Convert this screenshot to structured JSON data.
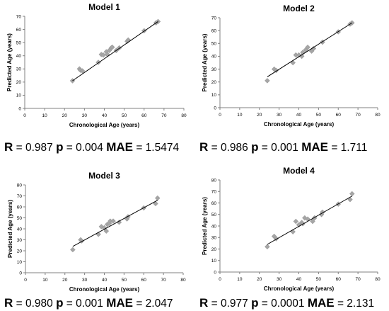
{
  "chart_data": [
    {
      "type": "scatter",
      "title": "Model 1",
      "xlabel": "Chronological Age (years)",
      "ylabel": "Predicted Age (years)",
      "xlim": [
        0,
        80
      ],
      "ylim": [
        0,
        70
      ],
      "xticks": [
        0,
        10,
        20,
        30,
        40,
        50,
        60,
        70,
        80
      ],
      "yticks": [
        0,
        10,
        20,
        30,
        40,
        50,
        60,
        70
      ],
      "grid": false,
      "trendline": [
        [
          24,
          21
        ],
        [
          67,
          66
        ]
      ],
      "points": [
        [
          24,
          21
        ],
        [
          27.5,
          30
        ],
        [
          28,
          29
        ],
        [
          29,
          28.5
        ],
        [
          37,
          35
        ],
        [
          38.5,
          41
        ],
        [
          39.5,
          40.5
        ],
        [
          41,
          43
        ],
        [
          41.5,
          41
        ],
        [
          42.5,
          44
        ],
        [
          43.5,
          46
        ],
        [
          44,
          46.5
        ],
        [
          46,
          44
        ],
        [
          47.5,
          46
        ],
        [
          51.5,
          51
        ],
        [
          52,
          52
        ],
        [
          60,
          59
        ],
        [
          66,
          65
        ],
        [
          67,
          66
        ]
      ],
      "stats": {
        "r_label": "R",
        "r_value": "= 0.987",
        "p_label": "p",
        "p_value": "= 0.004",
        "mae_label": "MAE",
        "mae_value": "= 1.5474"
      }
    },
    {
      "type": "scatter",
      "title": "Model 2",
      "xlabel": "Chronological Age (years)",
      "ylabel": "Predicted Age (years)",
      "xlim": [
        0,
        80
      ],
      "ylim": [
        0,
        70
      ],
      "xticks": [
        0,
        10,
        20,
        30,
        40,
        50,
        60,
        70,
        80
      ],
      "yticks": [
        0,
        10,
        20,
        30,
        40,
        50,
        60,
        70
      ],
      "grid": false,
      "trendline": [
        [
          24,
          24
        ],
        [
          67,
          66
        ]
      ],
      "points": [
        [
          24,
          21
        ],
        [
          27.5,
          30
        ],
        [
          28.5,
          29
        ],
        [
          37,
          35
        ],
        [
          38.5,
          41
        ],
        [
          40,
          41
        ],
        [
          41.5,
          40
        ],
        [
          42,
          43
        ],
        [
          43.5,
          45
        ],
        [
          44.5,
          47
        ],
        [
          46.5,
          44
        ],
        [
          47.5,
          46
        ],
        [
          52,
          51
        ],
        [
          60,
          59
        ],
        [
          66,
          65
        ],
        [
          67,
          66
        ]
      ],
      "stats": {
        "r_label": "R",
        "r_value": "= 0.986",
        "p_label": "p",
        "p_value": "= 0.001",
        "mae_label": "MAE",
        "mae_value": "= 1.711"
      }
    },
    {
      "type": "scatter",
      "title": "Model 3",
      "xlabel": "Chronological Age (years)",
      "ylabel": "Predicted Age (years)",
      "xlim": [
        0,
        80
      ],
      "ylim": [
        0,
        80
      ],
      "xticks": [
        0,
        10,
        20,
        30,
        40,
        50,
        60,
        70,
        80
      ],
      "yticks": [
        0,
        10,
        20,
        30,
        40,
        50,
        60,
        70,
        80
      ],
      "grid": false,
      "trendline": [
        [
          24,
          24
        ],
        [
          67,
          66
        ]
      ],
      "points": [
        [
          24,
          21
        ],
        [
          28,
          30
        ],
        [
          28.5,
          29
        ],
        [
          37,
          35
        ],
        [
          38.5,
          42
        ],
        [
          40,
          41
        ],
        [
          41,
          38
        ],
        [
          41.5,
          44
        ],
        [
          42.5,
          45
        ],
        [
          43,
          47
        ],
        [
          44.5,
          47
        ],
        [
          47.5,
          46
        ],
        [
          51.5,
          49
        ],
        [
          52,
          51
        ],
        [
          60,
          59
        ],
        [
          66,
          63
        ],
        [
          67,
          68
        ]
      ],
      "stats": {
        "r_label": "R",
        "r_value": "= 0.980",
        "p_label": "p",
        "p_value": "= 0.001",
        "mae_label": "MAE",
        "mae_value": "= 2.047"
      }
    },
    {
      "type": "scatter",
      "title": "Model 4",
      "xlabel": "Chronological Age (years)",
      "ylabel": "Predicted Age (years)",
      "xlim": [
        0,
        80
      ],
      "ylim": [
        0,
        80
      ],
      "xticks": [
        0,
        10,
        20,
        30,
        40,
        50,
        60,
        70,
        80
      ],
      "yticks": [
        0,
        10,
        20,
        30,
        40,
        50,
        60,
        70,
        80
      ],
      "grid": false,
      "trendline": [
        [
          24,
          24
        ],
        [
          67,
          66
        ]
      ],
      "points": [
        [
          24,
          22
        ],
        [
          27.5,
          31
        ],
        [
          28.5,
          29
        ],
        [
          37,
          35
        ],
        [
          38.5,
          44
        ],
        [
          40,
          41
        ],
        [
          41.5,
          43
        ],
        [
          42,
          42
        ],
        [
          43,
          47
        ],
        [
          44.5,
          46
        ],
        [
          47,
          44
        ],
        [
          48,
          47
        ],
        [
          51.5,
          50
        ],
        [
          52,
          52
        ],
        [
          60,
          59
        ],
        [
          66,
          63
        ],
        [
          67,
          68
        ]
      ],
      "stats": {
        "r_label": "R",
        "r_value": "= 0.977",
        "p_label": "p",
        "p_value": "= 0.0001",
        "mae_label": "MAE",
        "mae_value": "= 2.131"
      }
    }
  ]
}
